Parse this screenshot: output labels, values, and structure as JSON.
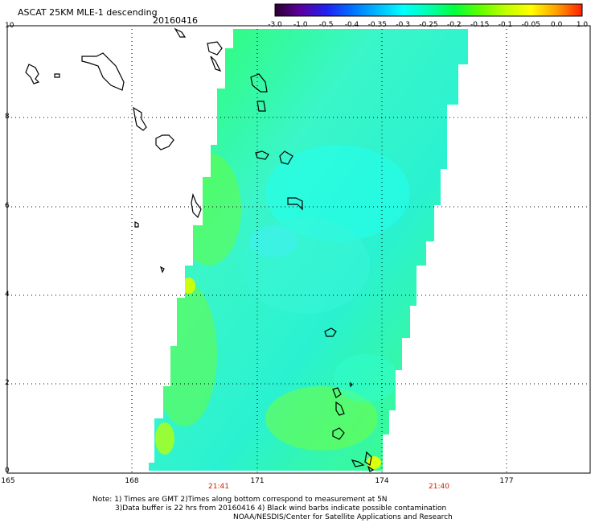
{
  "title": "ASCAT 25KM MLE-1 descending",
  "date": "20160416",
  "colorbar": {
    "labels": [
      "-3.0",
      "-1.0",
      "-0.5",
      "-0.4",
      "-0.35",
      "-0.3",
      "-0.25",
      "-0.2",
      "-0.15",
      "-0.1",
      "-0.05",
      "0.0",
      "1.0"
    ],
    "colors": [
      "#2a0030",
      "#5a00a0",
      "#2020f0",
      "#0070ff",
      "#00b8ff",
      "#00ffff",
      "#00ffb0",
      "#00ff40",
      "#60ff00",
      "#c0ff00",
      "#ffff00",
      "#ffa000",
      "#ff2000"
    ]
  },
  "axes": {
    "y_ticks": [
      "0",
      "2",
      "4",
      "6",
      "8",
      "10"
    ],
    "x_ticks": [
      "165",
      "168",
      "171",
      "174",
      "177"
    ],
    "times": [
      "21:41",
      "21:40"
    ]
  },
  "notes": {
    "line1": "Note: 1) Times are GMT 2)Times along bottom correspond to measurement at 5N",
    "line2": "3)Data buffer is 22 hrs from 20160416 4) Black wind barbs indicate possible contamination",
    "line3": "NOAA/NESDIS/Center for Satellite Applications and Research"
  }
}
